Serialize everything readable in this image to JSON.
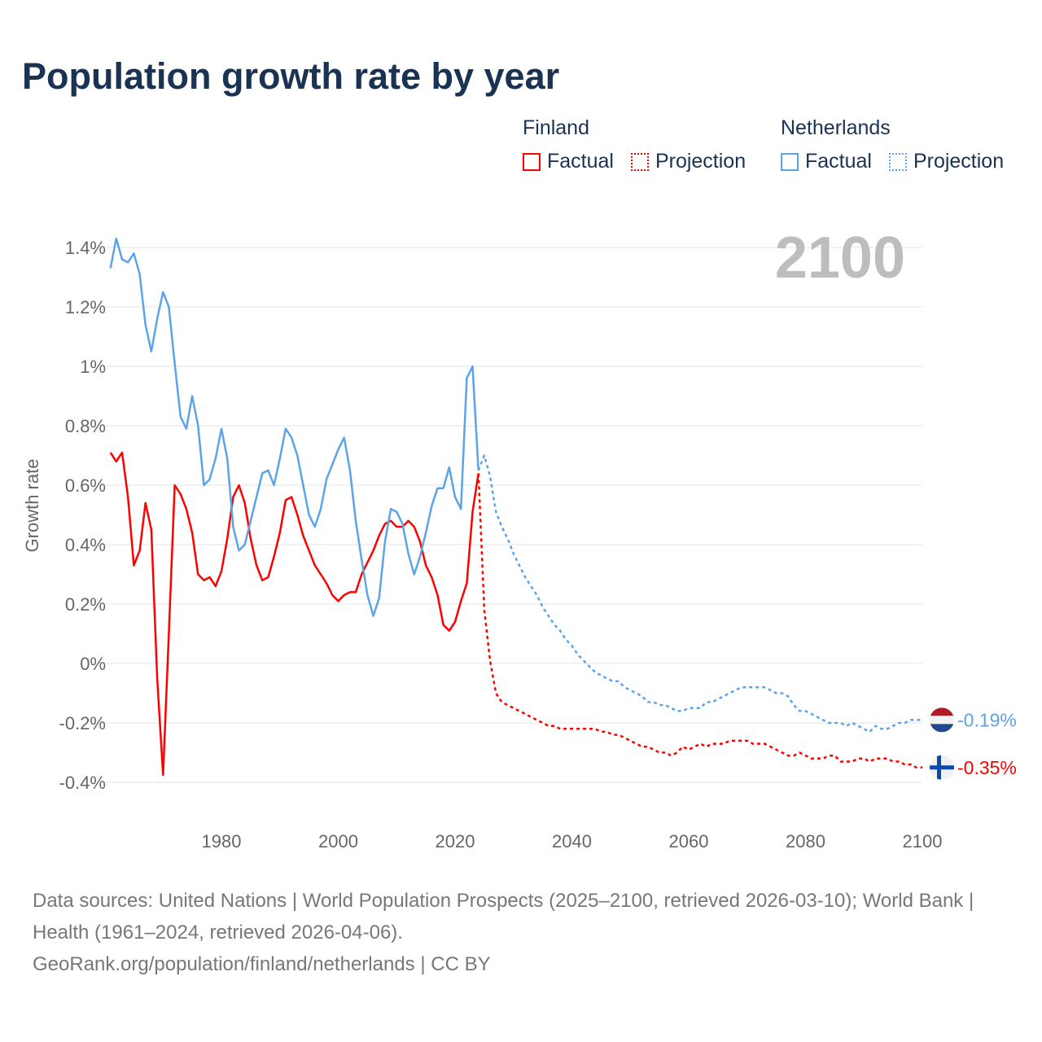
{
  "chart_data": {
    "type": "line",
    "title": "Population growth rate by year",
    "ylabel": "Growth rate",
    "xlabel": "",
    "ylim": [
      -0.4,
      1.4
    ],
    "xlim": [
      1961,
      2100
    ],
    "y_ticks": [
      -0.4,
      -0.2,
      0,
      0.2,
      0.4,
      0.6,
      0.8,
      1,
      1.2,
      1.4
    ],
    "y_tick_labels": [
      "-0.4%",
      "-0.2%",
      "0%",
      "0.2%",
      "0.4%",
      "0.6%",
      "0.8%",
      "1%",
      "1.2%",
      "1.4%"
    ],
    "x_ticks": [
      1980,
      2000,
      2020,
      2040,
      2060,
      2080,
      2100
    ],
    "x_tick_labels": [
      "1980",
      "2000",
      "2020",
      "2040",
      "2060",
      "2080",
      "2100"
    ],
    "grid": "horizontal",
    "current_year_label": "2100",
    "legend": {
      "placement": "top-right",
      "groups": [
        {
          "name": "Finland",
          "color": "#ff0000",
          "items": [
            "Factual",
            "Projection"
          ]
        },
        {
          "name": "Netherlands",
          "color": "#5ba4e8",
          "items": [
            "Factual",
            "Projection"
          ]
        }
      ]
    },
    "series": [
      {
        "name": "Finland Factual",
        "country": "Finland",
        "kind": "factual",
        "color": "#ff0000",
        "start_year": 1961,
        "values": [
          0.71,
          0.68,
          0.71,
          0.56,
          0.33,
          0.38,
          0.54,
          0.45,
          -0.05,
          -0.375,
          0.1,
          0.6,
          0.57,
          0.52,
          0.44,
          0.3,
          0.28,
          0.29,
          0.26,
          0.31,
          0.42,
          0.56,
          0.6,
          0.54,
          0.42,
          0.33,
          0.28,
          0.29,
          0.36,
          0.44,
          0.55,
          0.56,
          0.5,
          0.43,
          0.38,
          0.33,
          0.3,
          0.27,
          0.23,
          0.21,
          0.23,
          0.24,
          0.24,
          0.3,
          0.34,
          0.38,
          0.43,
          0.47,
          0.48,
          0.46,
          0.46,
          0.48,
          0.46,
          0.41,
          0.33,
          0.29,
          0.23,
          0.13,
          0.11,
          0.14,
          0.21,
          0.27,
          0.51,
          0.64
        ]
      },
      {
        "name": "Finland Projection",
        "country": "Finland",
        "kind": "projection",
        "color": "#ff0000",
        "start_year": 2024,
        "values": [
          0.64,
          0.18,
          0.01,
          -0.1,
          -0.13,
          -0.14,
          -0.15,
          -0.16,
          -0.17,
          -0.18,
          -0.19,
          -0.2,
          -0.21,
          -0.21,
          -0.22,
          -0.22,
          -0.22,
          -0.22,
          -0.22,
          -0.22,
          -0.22,
          -0.23,
          -0.23,
          -0.24,
          -0.24,
          -0.25,
          -0.26,
          -0.27,
          -0.28,
          -0.28,
          -0.29,
          -0.3,
          -0.3,
          -0.31,
          -0.3,
          -0.28,
          -0.29,
          -0.28,
          -0.27,
          -0.28,
          -0.27,
          -0.27,
          -0.27,
          -0.26,
          -0.26,
          -0.26,
          -0.26,
          -0.27,
          -0.27,
          -0.27,
          -0.28,
          -0.29,
          -0.3,
          -0.31,
          -0.31,
          -0.3,
          -0.31,
          -0.32,
          -0.32,
          -0.32,
          -0.31,
          -0.31,
          -0.33,
          -0.33,
          -0.33,
          -0.32,
          -0.32,
          -0.33,
          -0.32,
          -0.32,
          -0.32,
          -0.33,
          -0.33,
          -0.34,
          -0.34,
          -0.35,
          -0.35
        ],
        "end_label": "-0.35%"
      },
      {
        "name": "Netherlands Factual",
        "country": "Netherlands",
        "kind": "factual",
        "color": "#5ba4e8",
        "start_year": 1961,
        "values": [
          1.33,
          1.43,
          1.36,
          1.35,
          1.38,
          1.31,
          1.14,
          1.05,
          1.16,
          1.25,
          1.2,
          1.01,
          0.83,
          0.79,
          0.9,
          0.8,
          0.6,
          0.62,
          0.69,
          0.79,
          0.69,
          0.46,
          0.38,
          0.4,
          0.48,
          0.56,
          0.64,
          0.65,
          0.6,
          0.69,
          0.79,
          0.76,
          0.7,
          0.6,
          0.5,
          0.46,
          0.52,
          0.62,
          0.67,
          0.72,
          0.76,
          0.65,
          0.48,
          0.35,
          0.23,
          0.16,
          0.22,
          0.41,
          0.52,
          0.51,
          0.47,
          0.37,
          0.3,
          0.36,
          0.44,
          0.53,
          0.59,
          0.59,
          0.66,
          0.56,
          0.52,
          0.96,
          1.0,
          0.65
        ]
      },
      {
        "name": "Netherlands Projection",
        "country": "Netherlands",
        "kind": "projection",
        "color": "#5ba4e8",
        "start_year": 2024,
        "values": [
          0.65,
          0.7,
          0.63,
          0.51,
          0.46,
          0.42,
          0.37,
          0.33,
          0.29,
          0.26,
          0.23,
          0.19,
          0.16,
          0.13,
          0.11,
          0.08,
          0.06,
          0.03,
          0.01,
          -0.01,
          -0.03,
          -0.04,
          -0.05,
          -0.06,
          -0.06,
          -0.08,
          -0.09,
          -0.1,
          -0.11,
          -0.13,
          -0.13,
          -0.14,
          -0.14,
          -0.15,
          -0.16,
          -0.16,
          -0.15,
          -0.15,
          -0.15,
          -0.13,
          -0.13,
          -0.12,
          -0.11,
          -0.1,
          -0.09,
          -0.08,
          -0.08,
          -0.08,
          -0.08,
          -0.08,
          -0.09,
          -0.1,
          -0.1,
          -0.11,
          -0.14,
          -0.16,
          -0.16,
          -0.17,
          -0.18,
          -0.19,
          -0.2,
          -0.2,
          -0.2,
          -0.21,
          -0.2,
          -0.21,
          -0.22,
          -0.23,
          -0.21,
          -0.22,
          -0.22,
          -0.21,
          -0.2,
          -0.2,
          -0.19,
          -0.19,
          -0.19
        ],
        "end_label": "-0.19%"
      }
    ]
  },
  "footer": {
    "sources": "Data sources: United Nations | World Population Prospects (2025–2100, retrieved 2026-03-10); World Bank | Health (1961–2024, retrieved 2026-04-06).",
    "link": "GeoRank.org/population/finland/netherlands | CC BY"
  }
}
